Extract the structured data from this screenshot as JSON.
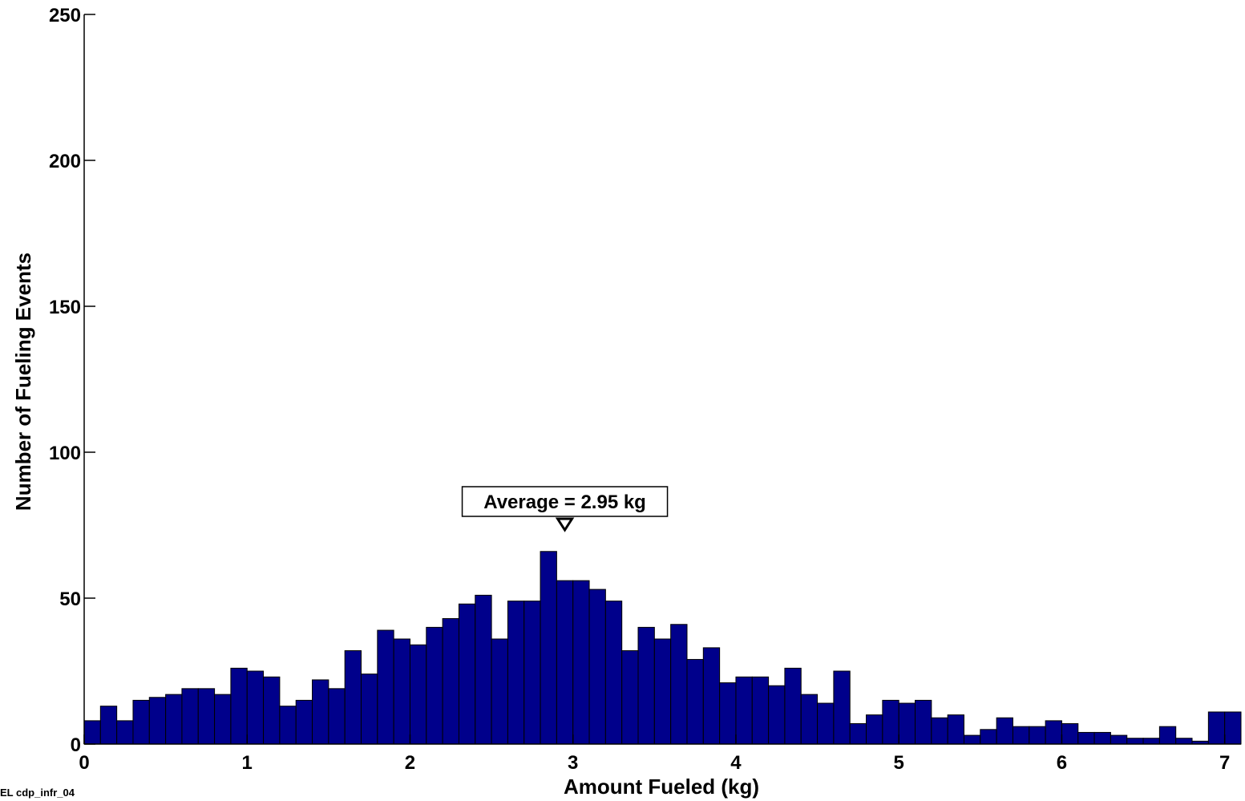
{
  "chart_data": {
    "type": "bar",
    "xlabel": "Amount Fueled (kg)",
    "ylabel": "Number of Fueling Events",
    "xlim": [
      0,
      7.1
    ],
    "ylim": [
      0,
      250
    ],
    "x_ticks": [
      0,
      1,
      2,
      3,
      4,
      5,
      6,
      7
    ],
    "y_ticks": [
      0,
      50,
      100,
      150,
      200,
      250
    ],
    "bin_width": 0.1,
    "bar_color": "#00008B",
    "grid": false,
    "bin_starts": [
      0.0,
      0.1,
      0.2,
      0.3,
      0.4,
      0.5,
      0.6,
      0.7,
      0.8,
      0.9,
      1.0,
      1.1,
      1.2,
      1.3,
      1.4,
      1.5,
      1.6,
      1.7,
      1.8,
      1.9,
      2.0,
      2.1,
      2.2,
      2.3,
      2.4,
      2.5,
      2.6,
      2.7,
      2.8,
      2.9,
      3.0,
      3.1,
      3.2,
      3.3,
      3.4,
      3.5,
      3.6,
      3.7,
      3.8,
      3.9,
      4.0,
      4.1,
      4.2,
      4.3,
      4.4,
      4.5,
      4.6,
      4.7,
      4.8,
      4.9,
      5.0,
      5.1,
      5.2,
      5.3,
      5.4,
      5.5,
      5.6,
      5.7,
      5.8,
      5.9,
      6.0,
      6.1,
      6.2,
      6.3,
      6.4,
      6.5,
      6.6,
      6.7,
      6.8,
      6.9,
      7.0
    ],
    "values": [
      8,
      13,
      8,
      15,
      16,
      17,
      19,
      19,
      17,
      26,
      25,
      23,
      13,
      15,
      22,
      19,
      32,
      24,
      39,
      36,
      34,
      40,
      43,
      48,
      51,
      36,
      49,
      49,
      66,
      56,
      56,
      53,
      49,
      32,
      40,
      36,
      41,
      29,
      33,
      21,
      23,
      23,
      20,
      26,
      17,
      14,
      25,
      7,
      10,
      15,
      14,
      15,
      9,
      10,
      3,
      5,
      9,
      6,
      6,
      8,
      7,
      4,
      4,
      3,
      2,
      2,
      6,
      2,
      1,
      11,
      11
    ],
    "annotation": {
      "text": "Average = 2.95 kg",
      "x": 2.95,
      "marker": "down-triangle"
    }
  },
  "footer": {
    "label": "EL cdp_infr_04"
  }
}
